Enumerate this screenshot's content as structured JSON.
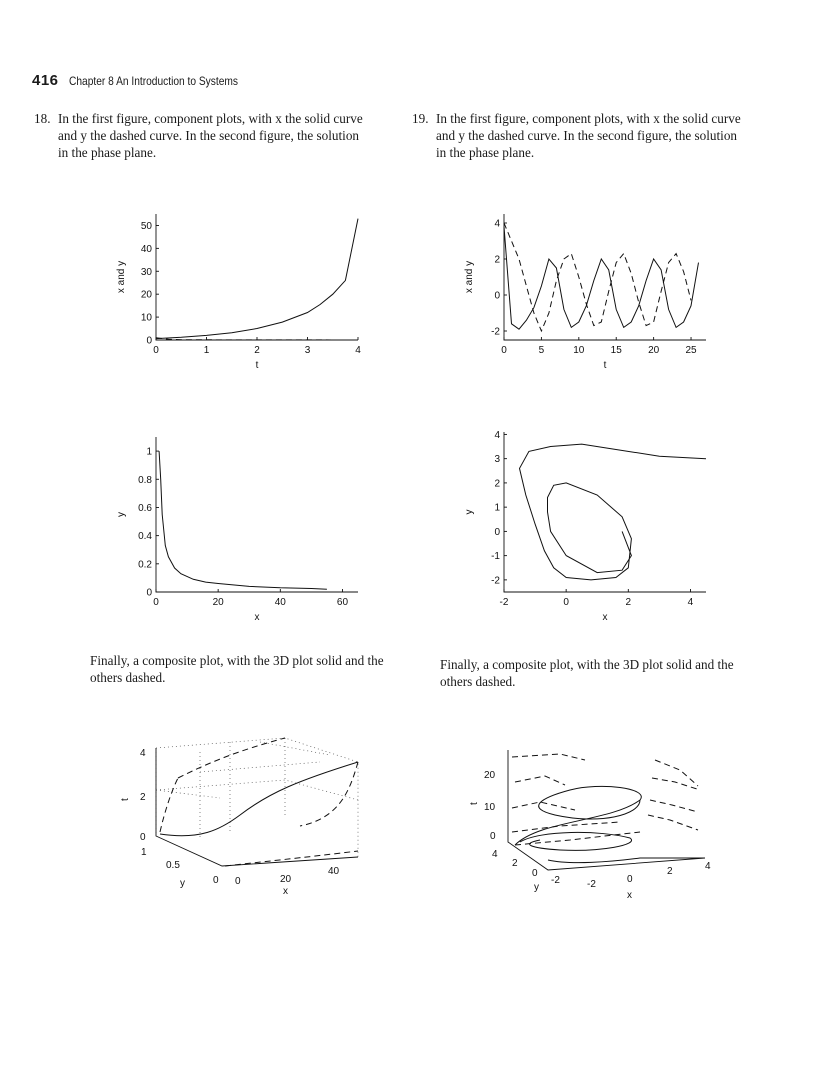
{
  "header": {
    "page_number": "416",
    "chapter": "Chapter 8  An Introduction to Systems"
  },
  "problems": [
    {
      "number": "18.",
      "text": "In the first figure, component plots, with x the solid curve and y the dashed curve. In the second figure, the solution in the phase plane."
    },
    {
      "number": "19.",
      "text": "In the first figure, component plots, with x the solid curve and y the dashed curve. In the second figure, the solution in the phase plane."
    }
  ],
  "captions": [
    "Finally, a composite plot, with the 3D plot solid and the others dashed.",
    "Finally, a composite plot, with the 3D plot solid and the others dashed."
  ],
  "chart_data": [
    {
      "type": "line",
      "xlabel": "t",
      "ylabel": "x and y",
      "xlim": [
        0,
        4
      ],
      "ylim": [
        0,
        55
      ],
      "xticks": [
        "0",
        "1",
        "2",
        "3",
        "4"
      ],
      "yticks": [
        "0",
        "10",
        "20",
        "30",
        "40",
        "50"
      ],
      "series": [
        {
          "style": "solid",
          "x": [
            0,
            0.5,
            1,
            1.5,
            2,
            2.5,
            3,
            3.25,
            3.5,
            3.75,
            4
          ],
          "y": [
            0.6,
            1.2,
            2,
            3.2,
            5,
            7.8,
            12,
            15.5,
            20,
            26,
            53
          ]
        },
        {
          "style": "dashed",
          "x": [
            0,
            0.25,
            0.5,
            1,
            2,
            3,
            4
          ],
          "y": [
            1,
            0.3,
            0.15,
            0.08,
            0.05,
            0.03,
            0.02
          ]
        }
      ]
    },
    {
      "type": "line",
      "xlabel": "t",
      "ylabel": "x and y",
      "xlim": [
        0,
        27
      ],
      "ylim": [
        -2.5,
        4.5
      ],
      "xticks": [
        "0",
        "5",
        "10",
        "15",
        "20",
        "25"
      ],
      "yticks": [
        "-2",
        "0",
        "2",
        "4"
      ],
      "series": [
        {
          "style": "solid",
          "x": [
            0,
            1,
            2,
            3,
            4,
            5,
            6,
            7,
            8,
            9,
            10,
            11,
            12,
            13,
            14,
            15,
            16,
            17,
            18,
            19,
            20,
            21,
            22,
            23,
            24,
            25,
            26
          ],
          "y": [
            3.8,
            -1.6,
            -1.9,
            -1.4,
            -0.7,
            0.5,
            2,
            1.5,
            -0.8,
            -1.8,
            -1.5,
            -0.6,
            0.8,
            2,
            1.4,
            -0.8,
            -1.8,
            -1.5,
            -0.6,
            0.8,
            2,
            1.4,
            -0.8,
            -1.8,
            -1.5,
            -0.6,
            1.8
          ]
        },
        {
          "style": "dashed",
          "x": [
            0,
            1,
            2,
            3,
            4,
            5,
            6,
            7,
            8,
            9,
            10,
            11,
            12,
            13,
            14,
            15,
            16,
            17,
            18,
            19,
            20,
            21,
            22,
            23,
            24,
            25
          ],
          "y": [
            4,
            3,
            2,
            0.5,
            -1,
            -2,
            -1,
            0.8,
            2,
            2.3,
            1,
            -0.5,
            -1.7,
            -1.5,
            0.2,
            1.8,
            2.3,
            1.2,
            -0.4,
            -1.7,
            -1.5,
            0.2,
            1.8,
            2.3,
            1.3,
            -0.3
          ]
        }
      ]
    },
    {
      "type": "line",
      "xlabel": "x",
      "ylabel": "y",
      "xlim": [
        0,
        65
      ],
      "ylim": [
        0,
        1.1
      ],
      "xticks": [
        "0",
        "20",
        "40",
        "60"
      ],
      "yticks": [
        "0",
        "0.2",
        "0.4",
        "0.6",
        "0.8",
        "1"
      ],
      "series": [
        {
          "style": "solid",
          "x": [
            1,
            1.5,
            2,
            3,
            4,
            6,
            8,
            12,
            16,
            20,
            30,
            40,
            50,
            55
          ],
          "y": [
            1,
            0.8,
            0.55,
            0.33,
            0.25,
            0.17,
            0.13,
            0.09,
            0.07,
            0.06,
            0.04,
            0.03,
            0.025,
            0.02
          ]
        }
      ]
    },
    {
      "type": "line",
      "xlabel": "x",
      "ylabel": "y",
      "xlim": [
        -2,
        4.5
      ],
      "ylim": [
        -2.5,
        4.1
      ],
      "xticks": [
        "-2",
        "0",
        "2",
        "4"
      ],
      "yticks": [
        "-2",
        "-1",
        "0",
        "1",
        "2",
        "3",
        "4"
      ],
      "series": [
        {
          "style": "solid",
          "x": [
            4.5,
            3,
            1.5,
            0.5,
            -0.5,
            -1.2,
            -1.5,
            -1.3,
            -1,
            -0.7,
            -0.4,
            0,
            0.8,
            1.6,
            2,
            2.1,
            1.8,
            1,
            0,
            -0.4,
            -0.6,
            -0.6,
            -0.5,
            0,
            1,
            1.8,
            2.1,
            1.8
          ],
          "y": [
            3,
            3.1,
            3.4,
            3.6,
            3.5,
            3.3,
            2.6,
            1.5,
            0.3,
            -0.8,
            -1.5,
            -1.9,
            -2,
            -1.9,
            -1.5,
            -0.3,
            0.6,
            1.5,
            2,
            1.9,
            1.4,
            0.8,
            0,
            -1,
            -1.7,
            -1.6,
            -1,
            0
          ]
        }
      ]
    },
    {
      "type": "3d-line",
      "xlabel": "x",
      "ylabel": "y",
      "zlabel": "t",
      "xticks": [
        "0",
        "20",
        "40"
      ],
      "yticks": [
        "0",
        "0.5",
        "1"
      ],
      "zticks": [
        "0",
        "2",
        "4"
      ]
    },
    {
      "type": "3d-line",
      "xlabel": "x",
      "ylabel": "y",
      "zlabel": "t",
      "xticks": [
        "-2",
        "0",
        "2",
        "4"
      ],
      "yticks": [
        "-2",
        "0",
        "2",
        "4"
      ],
      "zticks": [
        "0",
        "10",
        "20"
      ]
    }
  ]
}
